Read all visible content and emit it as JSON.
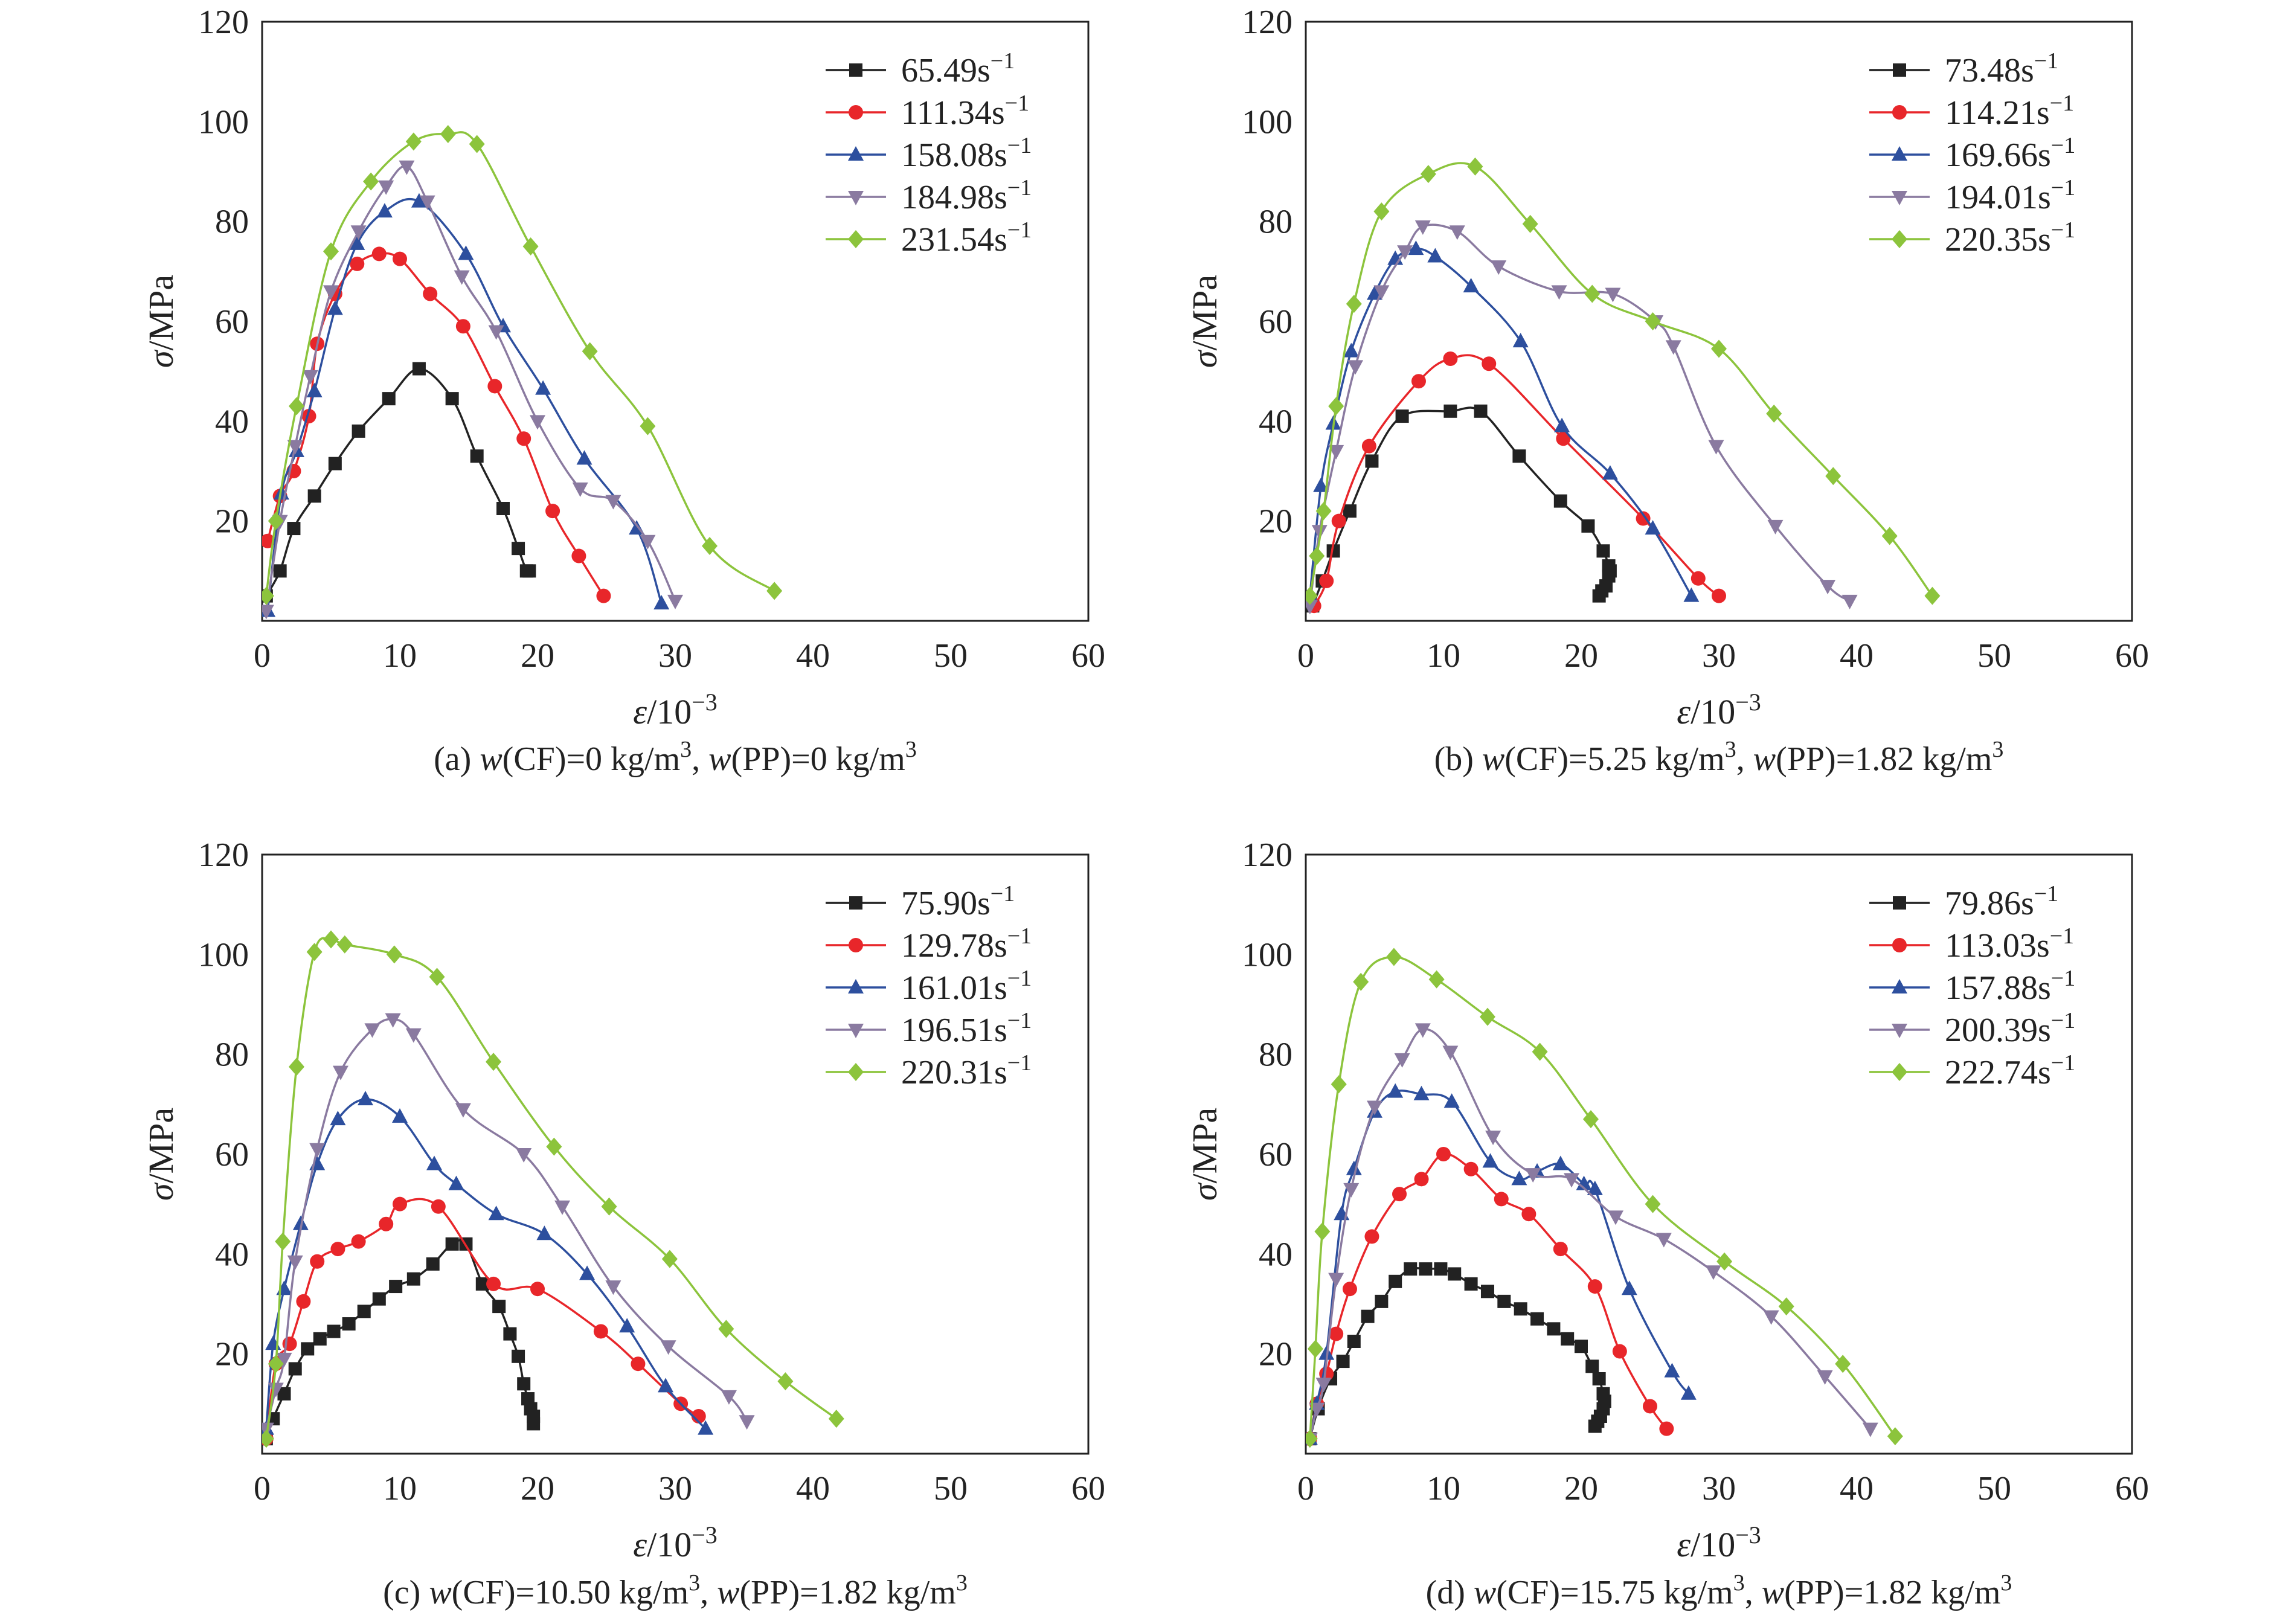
{
  "colors": {
    "series": [
      "#222222",
      "#e8262a",
      "#2d4f9e",
      "#8a7aa0",
      "#8cc43c"
    ],
    "axis": "#222222"
  },
  "chart_data": [
    {
      "type": "line",
      "caption": {
        "label": "(a) ",
        "w1": "w",
        "t1": "(CF)=0 kg/m",
        "s1": "3",
        "sep": ", ",
        "w2": "w",
        "t2": "(PP)=0 kg/m",
        "s2": "3"
      },
      "xlabel": {
        "sym": "ε",
        "unit": "/10",
        "exp": "−3"
      },
      "ylabel": {
        "sym": "σ",
        "unit": "/MPa"
      },
      "xlim": [
        0,
        60
      ],
      "ylim": [
        0,
        120
      ],
      "xticks": [
        "0",
        "10",
        "20",
        "30",
        "40",
        "50",
        "60"
      ],
      "yticks": [
        "20",
        "40",
        "60",
        "80",
        "100",
        "120"
      ],
      "legend_position": "top-right",
      "series": [
        {
          "name": "65.49",
          "unit": "s",
          "exp": "−1",
          "marker": "square",
          "x": [
            0.3,
            1.3,
            2.3,
            3.8,
            5.3,
            7.0,
            9.2,
            11.4,
            13.8,
            15.6,
            17.5,
            18.6,
            19.2,
            19.4
          ],
          "y": [
            5,
            10,
            18.5,
            25,
            31.5,
            38,
            44.5,
            50.5,
            44.5,
            33,
            22.5,
            14.5,
            10,
            10
          ]
        },
        {
          "name": "111.34",
          "unit": "s",
          "exp": "−1",
          "marker": "circle",
          "x": [
            0.4,
            1.3,
            2.3,
            3.4,
            4.0,
            5.3,
            6.9,
            8.5,
            10.0,
            12.2,
            14.6,
            16.9,
            19.0,
            21.1,
            23.0,
            24.8
          ],
          "y": [
            16,
            25,
            30,
            41,
            55.5,
            65.5,
            71.5,
            73.5,
            72.5,
            65.5,
            59,
            47,
            36.5,
            22,
            13,
            5
          ]
        },
        {
          "name": "158.08",
          "unit": "s",
          "exp": "−1",
          "marker": "triangle-up",
          "x": [
            0.4,
            1.4,
            2.5,
            3.8,
            5.3,
            6.9,
            8.9,
            11.4,
            14.8,
            17.5,
            20.4,
            23.4,
            27.2,
            29.0
          ],
          "y": [
            2,
            25.5,
            34,
            46,
            62.5,
            75.5,
            82,
            84,
            73.5,
            59,
            46.5,
            32.5,
            18.5,
            3.5
          ]
        },
        {
          "name": "184.98",
          "unit": "s",
          "exp": "−1",
          "marker": "triangle-down",
          "x": [
            0.3,
            1.3,
            2.4,
            3.5,
            5.0,
            7.0,
            9.0,
            10.5,
            12.0,
            14.5,
            17.0,
            20.0,
            23.1,
            25.5,
            28.0,
            30.0
          ],
          "y": [
            2,
            20,
            35,
            49,
            66,
            78,
            87,
            91,
            84,
            69,
            58,
            40,
            26.5,
            24,
            16,
            4
          ]
        },
        {
          "name": "231.54",
          "unit": "s",
          "exp": "−1",
          "marker": "diamond",
          "x": [
            0.3,
            1.0,
            2.5,
            5.0,
            7.9,
            11.0,
            13.5,
            15.6,
            19.5,
            23.8,
            28.0,
            32.5,
            37.2
          ],
          "y": [
            5,
            20,
            43,
            74,
            88,
            96,
            97.5,
            95.5,
            75,
            54,
            39,
            15,
            6
          ]
        }
      ]
    },
    {
      "type": "line",
      "caption": {
        "label": "(b) ",
        "w1": "w",
        "t1": "(CF)=5.25 kg/m",
        "s1": "3",
        "sep": ", ",
        "w2": "w",
        "t2": "(PP)=1.82 kg/m",
        "s2": "3"
      },
      "xlabel": {
        "sym": "ε",
        "unit": "/10",
        "exp": "−3"
      },
      "ylabel": {
        "sym": "σ",
        "unit": "/MPa"
      },
      "xlim": [
        0,
        60
      ],
      "ylim": [
        0,
        120
      ],
      "xticks": [
        "0",
        "10",
        "20",
        "30",
        "40",
        "50",
        "60"
      ],
      "yticks": [
        "20",
        "40",
        "60",
        "80",
        "100",
        "120"
      ],
      "legend_position": "top-right",
      "series": [
        {
          "name": "73.48",
          "unit": "s",
          "exp": "−1",
          "marker": "square",
          "x": [
            0.5,
            1.2,
            2.0,
            3.2,
            4.8,
            7.0,
            10.5,
            12.7,
            15.5,
            18.5,
            20.5,
            21.6,
            22.0,
            22.1,
            22.0,
            21.8,
            21.5,
            21.3
          ],
          "y": [
            3,
            8,
            14,
            22,
            32,
            41,
            42,
            42,
            33,
            24,
            19,
            14,
            11,
            10,
            9,
            7,
            6,
            5
          ]
        },
        {
          "name": "114.21",
          "unit": "s",
          "exp": "−1",
          "marker": "circle",
          "x": [
            0.6,
            1.5,
            2.4,
            4.6,
            8.2,
            10.5,
            13.3,
            18.7,
            24.5,
            28.5,
            30.0
          ],
          "y": [
            3,
            8,
            20,
            35,
            48,
            52.5,
            51.5,
            36.5,
            20.5,
            8.5,
            5
          ]
        },
        {
          "name": "169.66",
          "unit": "s",
          "exp": "−1",
          "marker": "triangle-up",
          "x": [
            0.3,
            1.1,
            2.0,
            3.3,
            5.0,
            6.5,
            8.0,
            9.4,
            12.0,
            15.6,
            18.6,
            22.1,
            25.2,
            28.0
          ],
          "y": [
            5,
            27,
            39.5,
            54,
            65.5,
            72.5,
            74.5,
            73,
            67,
            56,
            39,
            29.5,
            18.5,
            5
          ]
        },
        {
          "name": "194.01",
          "unit": "s",
          "exp": "−1",
          "marker": "triangle-down",
          "x": [
            0.3,
            1.0,
            2.2,
            3.6,
            5.5,
            7.2,
            8.5,
            11.0,
            14.0,
            18.4,
            22.3,
            25.4,
            26.7,
            29.8,
            34.1,
            37.9,
            39.5
          ],
          "y": [
            3,
            18,
            34,
            51,
            66,
            74,
            79,
            78,
            71,
            66,
            65.5,
            60,
            55,
            35,
            19,
            7,
            4
          ]
        },
        {
          "name": "220.35",
          "unit": "s",
          "exp": "−1",
          "marker": "diamond",
          "x": [
            0.3,
            0.8,
            1.3,
            2.2,
            3.5,
            5.5,
            8.9,
            12.3,
            16.3,
            20.8,
            25.2,
            30.0,
            34.0,
            38.3,
            42.4,
            45.5
          ],
          "y": [
            5,
            13,
            22,
            43,
            63.5,
            82,
            89.5,
            91,
            79.5,
            65.5,
            60,
            54.5,
            41.5,
            29,
            17,
            5
          ]
        }
      ]
    },
    {
      "type": "line",
      "caption": {
        "label": "(c) ",
        "w1": "w",
        "t1": "(CF)=10.50 kg/m",
        "s1": "3",
        "sep": ", ",
        "w2": "w",
        "t2": "(PP)=1.82 kg/m",
        "s2": "3"
      },
      "xlabel": {
        "sym": "ε",
        "unit": "/10",
        "exp": "−3"
      },
      "ylabel": {
        "sym": "σ",
        "unit": "/MPa"
      },
      "xlim": [
        0,
        60
      ],
      "ylim": [
        0,
        120
      ],
      "xticks": [
        "0",
        "10",
        "20",
        "30",
        "40",
        "50",
        "60"
      ],
      "yticks": [
        "20",
        "40",
        "60",
        "80",
        "100",
        "120"
      ],
      "legend_position": "top-right",
      "series": [
        {
          "name": "75.90",
          "unit": "s",
          "exp": "−1",
          "marker": "square",
          "x": [
            0.3,
            0.8,
            1.6,
            2.4,
            3.3,
            4.2,
            5.2,
            6.3,
            7.4,
            8.5,
            9.7,
            11.0,
            12.4,
            13.8,
            14.8,
            16.0,
            17.2,
            18.0,
            18.6,
            19.0,
            19.3,
            19.5,
            19.7,
            19.7
          ],
          "y": [
            3,
            7,
            12,
            17,
            21,
            23,
            24.5,
            26,
            28.5,
            31,
            33.5,
            35,
            38,
            42,
            42,
            34,
            29.5,
            24,
            19.5,
            14,
            11,
            9,
            7.5,
            6
          ]
        },
        {
          "name": "129.78",
          "unit": "s",
          "exp": "−1",
          "marker": "circle",
          "x": [
            0.3,
            1.0,
            2.0,
            3.0,
            4.0,
            5.5,
            7.0,
            9.0,
            10.0,
            12.8,
            16.8,
            20.0,
            24.6,
            27.3,
            30.4,
            31.7
          ],
          "y": [
            3,
            18,
            22,
            30.5,
            38.5,
            41,
            42.5,
            46,
            50,
            49.5,
            34,
            33,
            24.5,
            18,
            10,
            7.5
          ]
        },
        {
          "name": "161.01",
          "unit": "s",
          "exp": "−1",
          "marker": "triangle-up",
          "x": [
            0.3,
            0.8,
            1.6,
            2.8,
            4.0,
            5.5,
            7.5,
            10.0,
            12.5,
            14.1,
            17.0,
            20.5,
            23.6,
            26.5,
            29.3,
            32.2
          ],
          "y": [
            5,
            22,
            33,
            46,
            58,
            67,
            71,
            67.5,
            58,
            54,
            48,
            44,
            36,
            25.5,
            13.5,
            5
          ]
        },
        {
          "name": "196.51",
          "unit": "s",
          "exp": "−1",
          "marker": "triangle-down",
          "x": [
            0.3,
            1.0,
            1.6,
            2.4,
            4.0,
            5.7,
            8.0,
            9.5,
            11.0,
            14.6,
            19.0,
            21.8,
            25.5,
            29.5,
            33.9,
            35.2
          ],
          "y": [
            5,
            13,
            19,
            38.5,
            61,
            76.5,
            85,
            87,
            84,
            69,
            60,
            49.5,
            33.5,
            21.5,
            11.5,
            6.5
          ]
        },
        {
          "name": "220.31",
          "unit": "s",
          "exp": "−1",
          "marker": "diamond",
          "x": [
            0.3,
            1.0,
            1.5,
            2.5,
            3.8,
            5.0,
            6.0,
            9.6,
            12.7,
            16.8,
            21.2,
            25.2,
            29.6,
            33.7,
            38.0,
            41.7
          ],
          "y": [
            3,
            18,
            42.5,
            77.5,
            100.5,
            103,
            102,
            100,
            95.5,
            78.5,
            61.5,
            49.5,
            39,
            25,
            14.5,
            7
          ]
        }
      ]
    },
    {
      "type": "line",
      "caption": {
        "label": "(d) ",
        "w1": "w",
        "t1": "(CF)=15.75 kg/m",
        "s1": "3",
        "sep": ", ",
        "w2": "w",
        "t2": "(PP)=1.82 kg/m",
        "s2": "3"
      },
      "xlabel": {
        "sym": "ε",
        "unit": "/10",
        "exp": "−3"
      },
      "ylabel": {
        "sym": "σ",
        "unit": "/MPa"
      },
      "xlim": [
        0,
        60
      ],
      "ylim": [
        0,
        120
      ],
      "xticks": [
        "0",
        "10",
        "20",
        "30",
        "40",
        "50",
        "60"
      ],
      "yticks": [
        "20",
        "40",
        "60",
        "80",
        "100",
        "120"
      ],
      "legend_position": "top-right",
      "series": [
        {
          "name": "79.86",
          "unit": "s",
          "exp": "−1",
          "marker": "square",
          "x": [
            0.3,
            0.9,
            1.8,
            2.7,
            3.5,
            4.5,
            5.5,
            6.5,
            7.6,
            8.7,
            9.8,
            10.8,
            12.0,
            13.2,
            14.4,
            15.6,
            16.8,
            18.0,
            19.0,
            20.0,
            20.8,
            21.3,
            21.6,
            21.7,
            21.6,
            21.4,
            21.2,
            21.0
          ],
          "y": [
            3,
            9,
            15,
            18.5,
            22.5,
            27.5,
            30.5,
            34.5,
            37,
            37,
            37,
            36,
            34,
            32.5,
            30.5,
            29,
            27,
            25,
            23,
            21.5,
            17.5,
            15,
            12,
            10.5,
            9,
            7.5,
            6.5,
            5.5
          ]
        },
        {
          "name": "113.03",
          "unit": "s",
          "exp": "−1",
          "marker": "circle",
          "x": [
            0.3,
            0.8,
            1.5,
            2.2,
            3.2,
            4.8,
            6.8,
            8.4,
            10.0,
            12.0,
            14.2,
            16.2,
            18.5,
            21.0,
            22.8,
            25.0,
            26.2
          ],
          "y": [
            3,
            10,
            16,
            24,
            33,
            43.5,
            52,
            55,
            60,
            57,
            51,
            48,
            41,
            33.5,
            20.5,
            9.5,
            5
          ]
        },
        {
          "name": "157.88",
          "unit": "s",
          "exp": "−1",
          "marker": "triangle-up",
          "x": [
            0.3,
            0.8,
            1.5,
            2.6,
            3.5,
            5.0,
            6.5,
            8.4,
            10.6,
            13.4,
            15.5,
            16.8,
            18.5,
            20.2,
            21.0,
            23.5,
            26.6,
            27.8
          ],
          "y": [
            3,
            10,
            20,
            48,
            57,
            68.5,
            72.5,
            72,
            70.5,
            58.5,
            55,
            56.5,
            58,
            54,
            53,
            33,
            16.5,
            12
          ]
        },
        {
          "name": "200.39",
          "unit": "s",
          "exp": "−1",
          "marker": "triangle-down",
          "x": [
            0.3,
            0.8,
            1.3,
            2.2,
            3.3,
            5.0,
            7.0,
            8.5,
            10.5,
            13.6,
            16.5,
            19.3,
            22.5,
            26.0,
            29.6,
            33.8,
            37.7,
            41.0
          ],
          "y": [
            3,
            9,
            14,
            35,
            53,
            69.5,
            79,
            85,
            80.5,
            63.5,
            56,
            55,
            47.5,
            43,
            36.5,
            27.5,
            15.5,
            5
          ]
        },
        {
          "name": "222.74",
          "unit": "s",
          "exp": "−1",
          "marker": "diamond",
          "x": [
            0.3,
            0.7,
            1.2,
            2.4,
            4.0,
            6.4,
            9.5,
            13.2,
            17.0,
            20.7,
            25.2,
            30.4,
            34.9,
            39.0,
            42.8
          ],
          "y": [
            3,
            21,
            44.5,
            74,
            94.5,
            99.5,
            95,
            87.5,
            80.5,
            67,
            50,
            38.5,
            29.5,
            18,
            3.5
          ]
        }
      ]
    }
  ]
}
